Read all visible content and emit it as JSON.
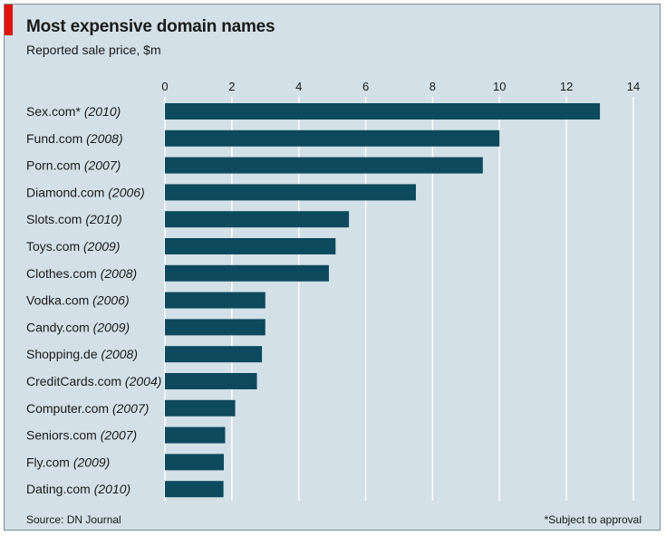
{
  "header": {
    "title": "Most expensive domain names",
    "subtitle": "Reported sale price, $m"
  },
  "footer": {
    "source": "Source: DN Journal",
    "footnote": "*Subject to approval"
  },
  "colors": {
    "bar": "#0e4a5e",
    "background": "#d3e0e7",
    "gridline": "#ffffff",
    "accent": "#e3120b"
  },
  "chart_data": {
    "type": "bar",
    "orientation": "horizontal",
    "title": "Most expensive domain names",
    "subtitle": "Reported sale price, $m",
    "xlim": [
      0,
      14
    ],
    "xticks": [
      0,
      2,
      4,
      6,
      8,
      10,
      12,
      14
    ],
    "grid": true,
    "categories": [
      {
        "name": "Sex.com*",
        "year": "(2010)",
        "value": 13.0
      },
      {
        "name": "Fund.com",
        "year": "(2008)",
        "value": 10.0
      },
      {
        "name": "Porn.com",
        "year": "(2007)",
        "value": 9.5
      },
      {
        "name": "Diamond.com",
        "year": "(2006)",
        "value": 7.5
      },
      {
        "name": "Slots.com",
        "year": "(2010)",
        "value": 5.5
      },
      {
        "name": "Toys.com",
        "year": "(2009)",
        "value": 5.1
      },
      {
        "name": "Clothes.com",
        "year": "(2008)",
        "value": 4.9
      },
      {
        "name": "Vodka.com",
        "year": "(2006)",
        "value": 3.0
      },
      {
        "name": "Candy.com",
        "year": "(2009)",
        "value": 3.0
      },
      {
        "name": "Shopping.de",
        "year": "(2008)",
        "value": 2.9
      },
      {
        "name": "CreditCards.com",
        "year": "(2004)",
        "value": 2.75
      },
      {
        "name": "Computer.com",
        "year": "(2007)",
        "value": 2.1
      },
      {
        "name": "Seniors.com",
        "year": "(2007)",
        "value": 1.8
      },
      {
        "name": "Fly.com",
        "year": "(2009)",
        "value": 1.76
      },
      {
        "name": "Dating.com",
        "year": "(2010)",
        "value": 1.75
      }
    ]
  }
}
